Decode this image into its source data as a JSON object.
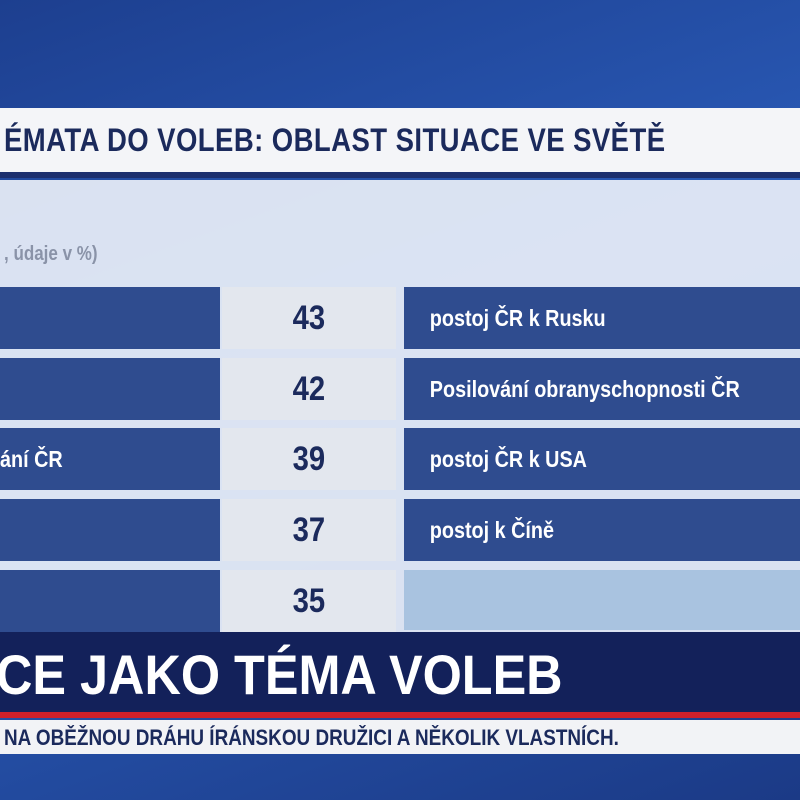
{
  "header": {
    "title": "ÉMATA DO VOLEB: OBLAST SITUACE VE SVĚTĚ",
    "subtitle": ", údaje v %)"
  },
  "table": {
    "rows": [
      {
        "value": 43,
        "right": "postoj ČR k Rusku"
      },
      {
        "value": 42,
        "right": "Posilování obranyschopnosti ČR"
      },
      {
        "left": "ání ČR",
        "value": 39,
        "right": "postoj ČR k USA"
      },
      {
        "value": 37,
        "right": "postoj k Číně"
      },
      {
        "value": 35
      }
    ]
  },
  "banner": {
    "headline": "CE JAKO TÉMA VOLEB",
    "ticker": "NA OBĚŽNOU DRÁHU ÍRÁNSKOU DRUŽICI A NĚKOLIK VLASTNÍCH."
  }
}
